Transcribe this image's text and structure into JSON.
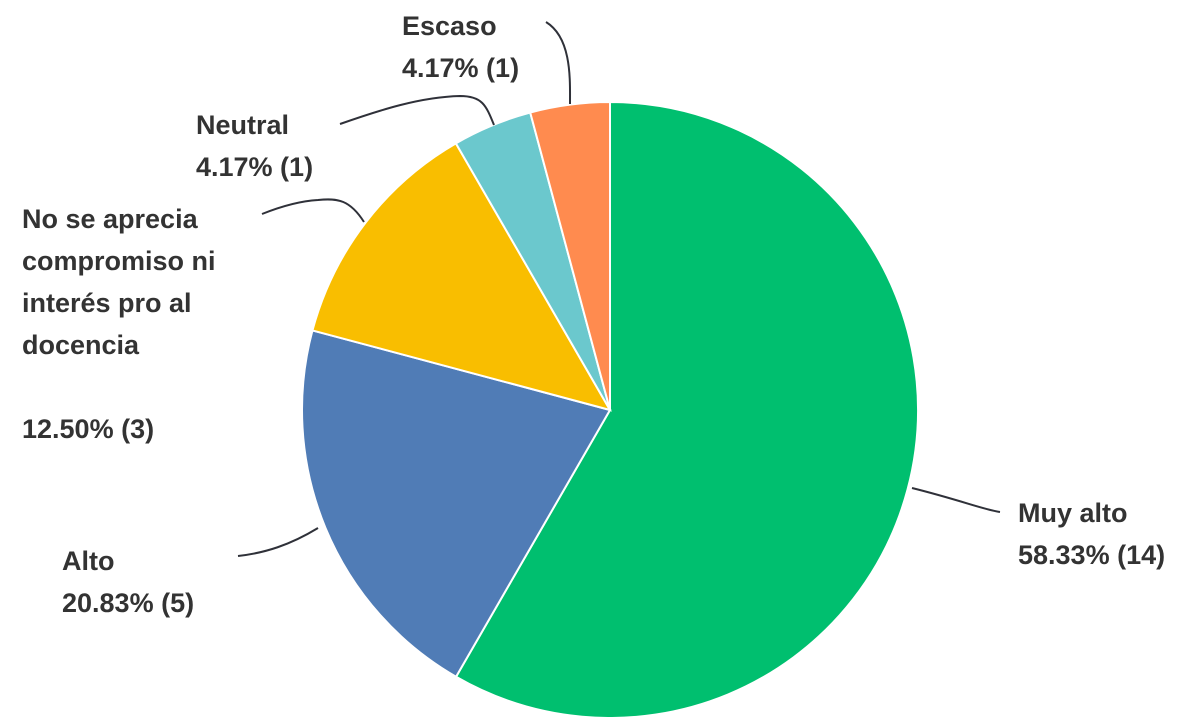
{
  "chart_data": {
    "type": "pie",
    "start_angle_deg": 0,
    "direction": "clockwise",
    "slices": [
      {
        "label": "Muy alto",
        "label_lines": [
          "Muy alto",
          "58.33% (14)"
        ],
        "value": 58.33,
        "count": 14,
        "color": "#00BF6F"
      },
      {
        "label": "Alto",
        "label_lines": [
          "Alto",
          "20.83% (5)"
        ],
        "value": 20.83,
        "count": 5,
        "color": "#507CB6"
      },
      {
        "label": "No se aprecia compromiso ni interés pro al docencia",
        "label_lines": [
          "No se aprecia",
          "compromiso ni",
          "interés pro al",
          "docencia",
          "",
          "12.50% (3)"
        ],
        "value": 12.5,
        "count": 3,
        "color": "#F9BE00"
      },
      {
        "label": "Neutral",
        "label_lines": [
          "Neutral",
          "4.17% (1)"
        ],
        "value": 4.17,
        "count": 1,
        "color": "#6BC8CD"
      },
      {
        "label": "Escaso",
        "label_lines": [
          "Escaso",
          "4.17% (1)"
        ],
        "value": 4.17,
        "count": 1,
        "color": "#FF8B4F"
      }
    ]
  }
}
